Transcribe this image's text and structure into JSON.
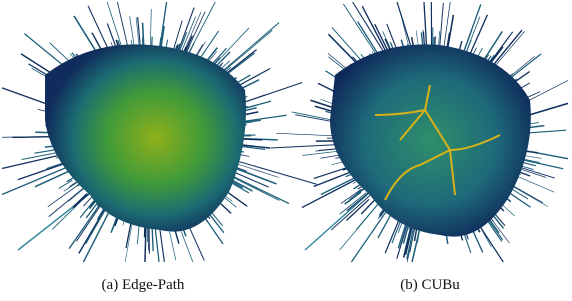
{
  "figure": {
    "panels": [
      {
        "caption": "(a) Edge-Path"
      },
      {
        "caption": "(b) CUBu"
      }
    ]
  }
}
